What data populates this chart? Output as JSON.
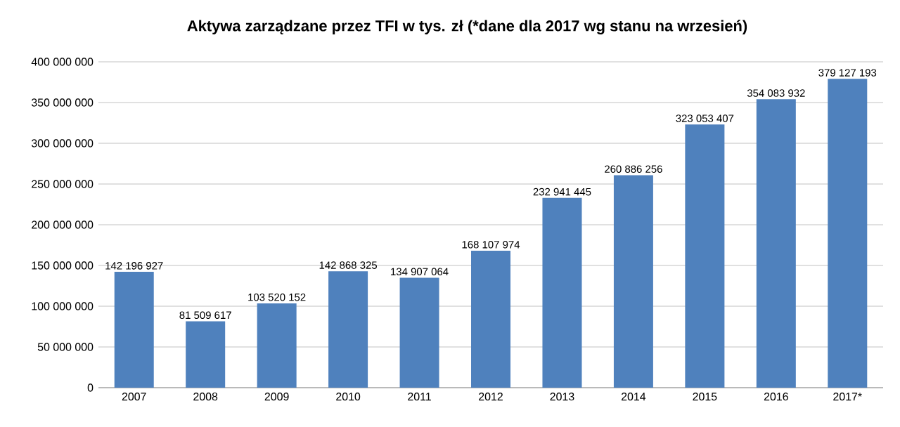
{
  "chart_data": {
    "type": "bar",
    "title": "Aktywa zarządzane przez TFI w tys. zł (*dane dla 2017 wg stanu na wrzesień)",
    "categories": [
      "2007",
      "2008",
      "2009",
      "2010",
      "2011",
      "2012",
      "2013",
      "2014",
      "2015",
      "2016",
      "2017*"
    ],
    "values": [
      142196927,
      81509617,
      103520152,
      142868325,
      134907064,
      168107974,
      232941445,
      260886256,
      323053407,
      354083932,
      379127193
    ],
    "value_labels": [
      "142 196 927",
      "81 509 617",
      "103 520 152",
      "142 868 325",
      "134 907 064",
      "168 107 974",
      "232 941 445",
      "260 886 256",
      "323 053 407",
      "354 083 932",
      "379 127 193"
    ],
    "color": "#4f81bd",
    "ylim": [
      0,
      400000000
    ],
    "yticks": [
      {
        "value": 0,
        "label": "0"
      },
      {
        "value": 50000000,
        "label": "50 000 000"
      },
      {
        "value": 100000000,
        "label": "100 000 000"
      },
      {
        "value": 150000000,
        "label": "150 000 000"
      },
      {
        "value": 200000000,
        "label": "200 000 000"
      },
      {
        "value": 250000000,
        "label": "250 000 000"
      },
      {
        "value": 300000000,
        "label": "300 000 000"
      },
      {
        "value": 350000000,
        "label": "350 000 000"
      },
      {
        "value": 400000000,
        "label": "400 000 000"
      }
    ],
    "grid": "y"
  }
}
